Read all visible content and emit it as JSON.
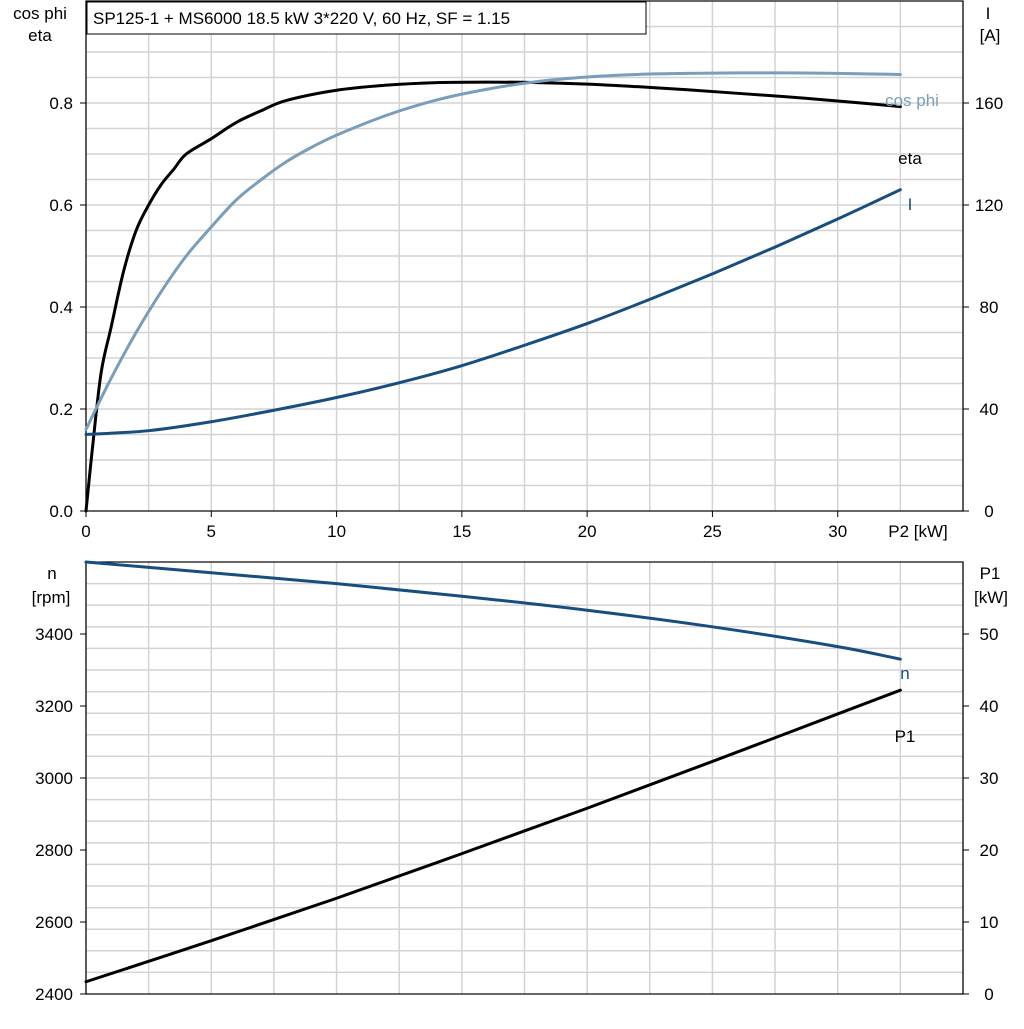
{
  "chart_data": [
    {
      "type": "line",
      "title": "SP125-1 + MS6000   18.5 kW   3*220 V, 60 Hz, SF = 1.15",
      "xlabel": "P2 [kW]",
      "ylabel_left": [
        "cos phi",
        "eta"
      ],
      "ylabel_right": [
        "I",
        "[A]"
      ],
      "xlim": [
        0,
        35
      ],
      "ylim_left": [
        0,
        1.0
      ],
      "ylim_right": [
        0,
        200
      ],
      "x_ticks": [
        "0",
        "5",
        "10",
        "15",
        "20",
        "25",
        "30"
      ],
      "y_left_ticks": [
        "0.0",
        "0.2",
        "0.4",
        "0.6",
        "0.8"
      ],
      "y_right_ticks": [
        "0",
        "40",
        "80",
        "120",
        "160"
      ],
      "grid": true,
      "series": [
        {
          "name": "eta",
          "axis": "left",
          "color": "#000000",
          "x": [
            0,
            0.25,
            0.6,
            1.0,
            1.5,
            2.0,
            2.5,
            3.0,
            3.5,
            4.0,
            5.0,
            6.0,
            7.0,
            8.0,
            10.0,
            12.0,
            14.0,
            16.0,
            18.0,
            20.0,
            22.0,
            24.0,
            26.0,
            28.0,
            30.0,
            32.5
          ],
          "y": [
            0.0,
            0.12,
            0.27,
            0.36,
            0.47,
            0.55,
            0.6,
            0.64,
            0.67,
            0.7,
            0.73,
            0.762,
            0.785,
            0.805,
            0.825,
            0.835,
            0.84,
            0.841,
            0.84,
            0.837,
            0.832,
            0.826,
            0.819,
            0.812,
            0.804,
            0.793
          ]
        },
        {
          "name": "cos phi",
          "axis": "left",
          "color": "#7a9dbb",
          "x": [
            0,
            1.0,
            2.0,
            3.0,
            4.0,
            5.0,
            6.0,
            7.0,
            8.0,
            9.0,
            10.0,
            12.0,
            14.0,
            16.0,
            18.0,
            20.0,
            22.0,
            24.0,
            26.0,
            28.0,
            30.0,
            32.5
          ],
          "y": [
            0.16,
            0.26,
            0.35,
            0.43,
            0.5,
            0.557,
            0.61,
            0.65,
            0.685,
            0.713,
            0.737,
            0.776,
            0.806,
            0.827,
            0.842,
            0.851,
            0.856,
            0.858,
            0.859,
            0.859,
            0.858,
            0.856
          ]
        },
        {
          "name": "I",
          "axis": "right",
          "color": "#174e7f",
          "x": [
            0,
            2.5,
            5.0,
            7.5,
            10.0,
            12.5,
            15.0,
            17.5,
            20.0,
            22.5,
            25.0,
            27.5,
            30.0,
            32.5
          ],
          "y": [
            30,
            31.5,
            35,
            39.5,
            44.5,
            50.3,
            57,
            65,
            73.5,
            83,
            93,
            103.5,
            114.5,
            126
          ]
        }
      ]
    },
    {
      "type": "line",
      "xlabel": "P2 [kW]",
      "ylabel_left": [
        "n",
        "[rpm]"
      ],
      "ylabel_right": [
        "P1",
        "[kW]"
      ],
      "xlim": [
        0,
        35
      ],
      "ylim_left": [
        2400,
        3600
      ],
      "ylim_right": [
        0,
        60
      ],
      "x_ticks": [
        "0",
        "5",
        "10",
        "15",
        "20",
        "25",
        "30"
      ],
      "y_left_ticks": [
        "2400",
        "2600",
        "2800",
        "3000",
        "3200",
        "3400"
      ],
      "y_right_ticks": [
        "0",
        "10",
        "20",
        "30",
        "40",
        "50"
      ],
      "grid": true,
      "series": [
        {
          "name": "n",
          "axis": "left",
          "color": "#174e7f",
          "x": [
            0,
            5,
            10,
            15,
            20,
            25,
            30,
            32.5
          ],
          "y": [
            3600,
            3570,
            3540,
            3505,
            3466,
            3420,
            3365,
            3330
          ]
        },
        {
          "name": "P1",
          "axis": "right",
          "color": "#000000",
          "x": [
            0,
            5,
            10,
            15,
            20,
            25,
            30,
            32.5
          ],
          "y": [
            1.7,
            7.4,
            13.3,
            19.5,
            25.8,
            32.3,
            38.9,
            42.2
          ]
        }
      ]
    }
  ]
}
